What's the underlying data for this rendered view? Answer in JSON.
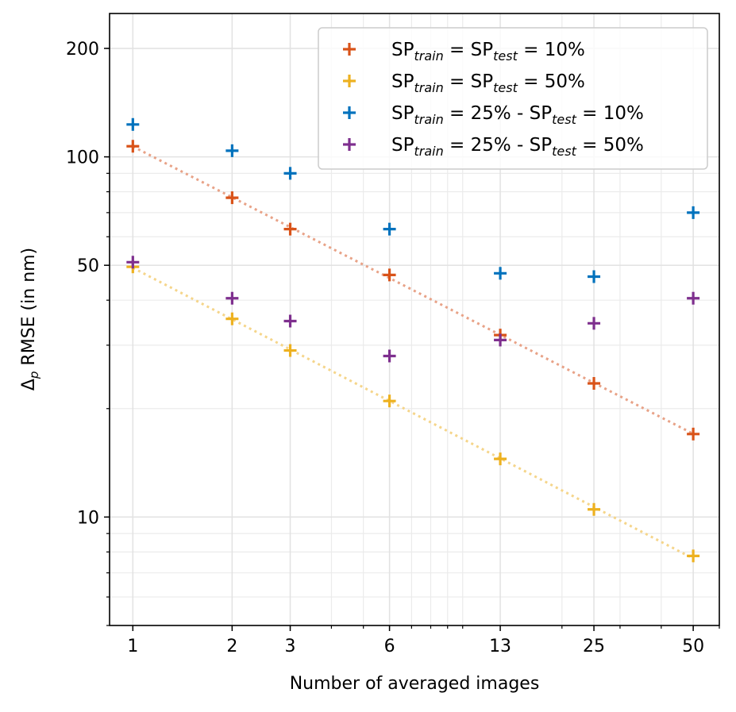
{
  "chart_data": {
    "type": "scatter",
    "xscale": "log",
    "yscale": "log",
    "xlim": [
      0.85,
      60
    ],
    "ylim": [
      5,
      250
    ],
    "grid": true,
    "xlabel": "Number of averaged images",
    "ylabel_main": "Δ",
    "ylabel_sub": "p",
    "ylabel_rest": " RMSE (in nm)",
    "xticks": [
      1,
      2,
      3,
      6,
      13,
      25,
      50
    ],
    "yticks": [
      10,
      50,
      100,
      200
    ],
    "legend_position": "top-right",
    "series": [
      {
        "name": "SP_train = SP_test = 10%",
        "legend": {
          "a": "SP",
          "a_sub": "train",
          "mid": " = SP",
          "b_sub": "test",
          "tail": " = 10%"
        },
        "color": "#d95319",
        "trend": "#e8a287",
        "x": [
          1,
          2,
          3,
          6,
          13,
          25,
          50
        ],
        "y": [
          107,
          77,
          63,
          47,
          32,
          23.5,
          17
        ],
        "trendline": true
      },
      {
        "name": "SP_train = SP_test = 50%",
        "legend": {
          "a": "SP",
          "a_sub": "train",
          "mid": " = SP",
          "b_sub": "test",
          "tail": " = 50%"
        },
        "color": "#edb120",
        "trend": "#f5d58a",
        "x": [
          1,
          2,
          3,
          6,
          13,
          25,
          50
        ],
        "y": [
          49.5,
          35.5,
          29,
          21,
          14.5,
          10.5,
          7.8
        ],
        "trendline": true
      },
      {
        "name": "SP_train = 25% - SP_test = 10%",
        "legend": {
          "a": "SP",
          "a_sub": "train",
          "mid": " = 25% - SP",
          "b_sub": "test",
          "tail": " = 10%"
        },
        "color": "#0072bd",
        "x": [
          1,
          2,
          3,
          6,
          13,
          25,
          50
        ],
        "y": [
          123,
          104,
          90,
          63,
          47.5,
          46.5,
          70
        ],
        "trendline": false
      },
      {
        "name": "SP_train = 25% - SP_test = 50%",
        "legend": {
          "a": "SP",
          "a_sub": "train",
          "mid": " = 25% - SP",
          "b_sub": "test",
          "tail": " = 50%"
        },
        "color": "#7e2f8e",
        "x": [
          1,
          2,
          3,
          6,
          13,
          25,
          50
        ],
        "y": [
          51,
          40.5,
          35,
          28,
          31,
          34.5,
          40.5
        ],
        "trendline": false
      }
    ]
  }
}
